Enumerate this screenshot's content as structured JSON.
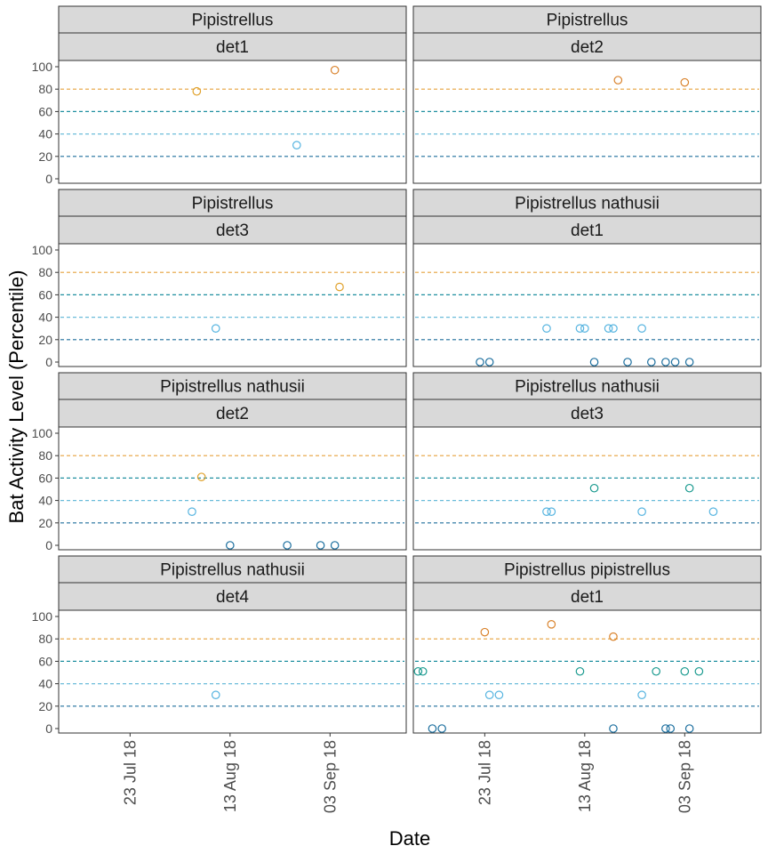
{
  "chart_data": {
    "type": "scatter",
    "xlabel": "Date",
    "ylabel": "Bat Activity Level (Percentile)",
    "ylim": [
      0,
      100
    ],
    "yticks": [
      0,
      20,
      40,
      60,
      80,
      100
    ],
    "xlim": [
      "2018-07-08",
      "2018-09-19"
    ],
    "xticks": [
      {
        "date": "2018-07-23",
        "label": "23 Jul 18"
      },
      {
        "date": "2018-08-13",
        "label": "13 Aug 18"
      },
      {
        "date": "2018-09-03",
        "label": "03 Sep 18"
      }
    ],
    "reference_lines": [
      {
        "y": 20,
        "color": "#1f6f9c"
      },
      {
        "y": 40,
        "color": "#6bbcd9"
      },
      {
        "y": 60,
        "color": "#1f8fa0"
      },
      {
        "y": 80,
        "color": "#e6a23c"
      }
    ],
    "level_colors": {
      "nil": "#1b6e9e",
      "low": "#56b4e0",
      "lowmod": "#1a9a8f",
      "moderate": "#e0a12a",
      "modhigh": "#d9822b"
    },
    "panels": [
      {
        "species": "Pipistrellus",
        "detector": "det1",
        "points": [
          {
            "date": "2018-08-06",
            "y": 78,
            "level": "moderate"
          },
          {
            "date": "2018-08-27",
            "y": 30,
            "level": "low"
          },
          {
            "date": "2018-09-04",
            "y": 97,
            "level": "modhigh"
          }
        ]
      },
      {
        "species": "Pipistrellus",
        "detector": "det2",
        "points": [
          {
            "date": "2018-08-20",
            "y": 88,
            "level": "modhigh"
          },
          {
            "date": "2018-09-03",
            "y": 86,
            "level": "modhigh"
          }
        ]
      },
      {
        "species": "Pipistrellus",
        "detector": "det3",
        "points": [
          {
            "date": "2018-08-10",
            "y": 30,
            "level": "low"
          },
          {
            "date": "2018-09-05",
            "y": 67,
            "level": "moderate"
          }
        ]
      },
      {
        "species": "Pipistrellus nathusii",
        "detector": "det1",
        "points": [
          {
            "date": "2018-07-22",
            "y": 0,
            "level": "nil"
          },
          {
            "date": "2018-07-24",
            "y": 0,
            "level": "nil"
          },
          {
            "date": "2018-08-05",
            "y": 30,
            "level": "low"
          },
          {
            "date": "2018-08-12",
            "y": 30,
            "level": "low"
          },
          {
            "date": "2018-08-13",
            "y": 30,
            "level": "low"
          },
          {
            "date": "2018-08-15",
            "y": 0,
            "level": "nil"
          },
          {
            "date": "2018-08-18",
            "y": 30,
            "level": "low"
          },
          {
            "date": "2018-08-19",
            "y": 30,
            "level": "low"
          },
          {
            "date": "2018-08-22",
            "y": 0,
            "level": "nil"
          },
          {
            "date": "2018-08-25",
            "y": 30,
            "level": "low"
          },
          {
            "date": "2018-08-27",
            "y": 0,
            "level": "nil"
          },
          {
            "date": "2018-08-30",
            "y": 0,
            "level": "nil"
          },
          {
            "date": "2018-09-01",
            "y": 0,
            "level": "nil"
          },
          {
            "date": "2018-09-04",
            "y": 0,
            "level": "nil"
          }
        ]
      },
      {
        "species": "Pipistrellus nathusii",
        "detector": "det2",
        "points": [
          {
            "date": "2018-08-05",
            "y": 30,
            "level": "low"
          },
          {
            "date": "2018-08-07",
            "y": 61,
            "level": "moderate"
          },
          {
            "date": "2018-08-13",
            "y": 0,
            "level": "nil"
          },
          {
            "date": "2018-08-25",
            "y": 0,
            "level": "nil"
          },
          {
            "date": "2018-09-01",
            "y": 0,
            "level": "nil"
          },
          {
            "date": "2018-09-04",
            "y": 0,
            "level": "nil"
          }
        ]
      },
      {
        "species": "Pipistrellus nathusii",
        "detector": "det3",
        "points": [
          {
            "date": "2018-08-05",
            "y": 30,
            "level": "low"
          },
          {
            "date": "2018-08-06",
            "y": 30,
            "level": "low"
          },
          {
            "date": "2018-08-15",
            "y": 51,
            "level": "lowmod"
          },
          {
            "date": "2018-08-25",
            "y": 30,
            "level": "low"
          },
          {
            "date": "2018-09-04",
            "y": 51,
            "level": "lowmod"
          },
          {
            "date": "2018-09-09",
            "y": 30,
            "level": "low"
          }
        ]
      },
      {
        "species": "Pipistrellus nathusii",
        "detector": "det4",
        "points": [
          {
            "date": "2018-08-10",
            "y": 30,
            "level": "low"
          }
        ]
      },
      {
        "species": "Pipistrellus pipistrellus",
        "detector": "det1",
        "points": [
          {
            "date": "2018-07-09",
            "y": 51,
            "level": "lowmod"
          },
          {
            "date": "2018-07-10",
            "y": 51,
            "level": "lowmod"
          },
          {
            "date": "2018-07-12",
            "y": 0,
            "level": "nil"
          },
          {
            "date": "2018-07-14",
            "y": 0,
            "level": "nil"
          },
          {
            "date": "2018-07-23",
            "y": 86,
            "level": "modhigh"
          },
          {
            "date": "2018-07-24",
            "y": 30,
            "level": "low"
          },
          {
            "date": "2018-07-26",
            "y": 30,
            "level": "low"
          },
          {
            "date": "2018-08-06",
            "y": 93,
            "level": "modhigh"
          },
          {
            "date": "2018-08-12",
            "y": 51,
            "level": "lowmod"
          },
          {
            "date": "2018-08-19",
            "y": 0,
            "level": "nil"
          },
          {
            "date": "2018-08-19",
            "y": 82,
            "level": "modhigh"
          },
          {
            "date": "2018-08-25",
            "y": 30,
            "level": "low"
          },
          {
            "date": "2018-08-28",
            "y": 51,
            "level": "lowmod"
          },
          {
            "date": "2018-08-30",
            "y": 0,
            "level": "nil"
          },
          {
            "date": "2018-08-31",
            "y": 0,
            "level": "nil"
          },
          {
            "date": "2018-09-03",
            "y": 51,
            "level": "lowmod"
          },
          {
            "date": "2018-09-04",
            "y": 0,
            "level": "nil"
          },
          {
            "date": "2018-09-06",
            "y": 51,
            "level": "lowmod"
          }
        ]
      }
    ]
  }
}
